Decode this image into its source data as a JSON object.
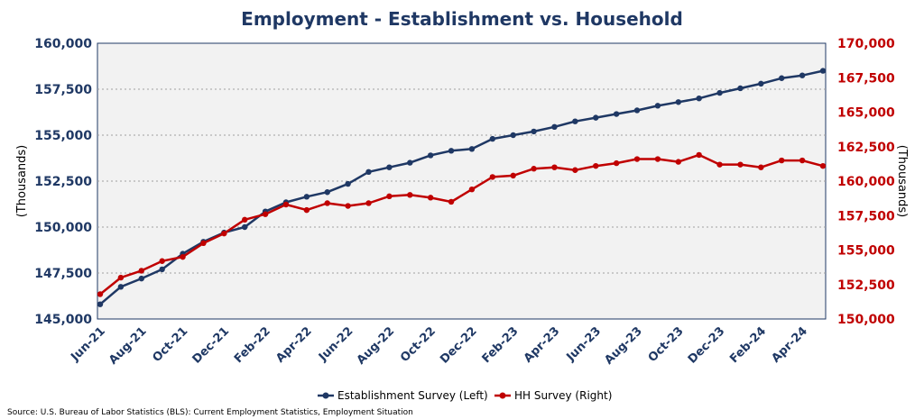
{
  "chart_data": {
    "type": "line",
    "title": "Employment - Establishment vs. Household",
    "ylabel_left": "(Thousands)",
    "ylabel_right": "(Thousands)",
    "ylim_left": [
      145000,
      160000
    ],
    "ylim_right": [
      150000,
      170000
    ],
    "yticks_left": [
      "145,000",
      "147,500",
      "150,000",
      "152,500",
      "155,000",
      "157,500",
      "160,000"
    ],
    "yticks_right": [
      "150,000",
      "152,500",
      "155,000",
      "157,500",
      "160,000",
      "162,500",
      "165,000",
      "167,500",
      "170,000"
    ],
    "x": [
      "Jun-21",
      "Jul-21",
      "Aug-21",
      "Sep-21",
      "Oct-21",
      "Nov-21",
      "Dec-21",
      "Jan-22",
      "Feb-22",
      "Mar-22",
      "Apr-22",
      "May-22",
      "Jun-22",
      "Jul-22",
      "Aug-22",
      "Sep-22",
      "Oct-22",
      "Nov-22",
      "Dec-22",
      "Jan-23",
      "Feb-23",
      "Mar-23",
      "Apr-23",
      "May-23",
      "Jun-23",
      "Jul-23",
      "Aug-23",
      "Sep-23",
      "Oct-23",
      "Nov-23",
      "Dec-23",
      "Jan-24",
      "Feb-24",
      "Mar-24",
      "Apr-24",
      "May-24"
    ],
    "xtick_labels": [
      "Jun-21",
      "Aug-21",
      "Oct-21",
      "Dec-21",
      "Feb-22",
      "Apr-22",
      "Jun-22",
      "Aug-22",
      "Oct-22",
      "Dec-22",
      "Feb-23",
      "Apr-23",
      "Jun-23",
      "Aug-23",
      "Oct-23",
      "Dec-23",
      "Feb-24",
      "Apr-24"
    ],
    "series": [
      {
        "name": "Establishment Survey (Left)",
        "axis": "left",
        "color": "#1f3864",
        "values": [
          145800,
          146750,
          147200,
          147700,
          148550,
          149200,
          149700,
          150000,
          150850,
          151350,
          151650,
          151900,
          152350,
          153000,
          153250,
          153500,
          153900,
          154150,
          154250,
          154800,
          155000,
          155200,
          155450,
          155750,
          155950,
          156150,
          156350,
          156600,
          156800,
          157000,
          157300,
          157550,
          157800,
          158100,
          158250,
          158500
        ]
      },
      {
        "name": "HH Survey (Right)",
        "axis": "right",
        "color": "#c00000",
        "values": [
          151800,
          153000,
          153500,
          154200,
          154500,
          155500,
          156200,
          157200,
          157600,
          158300,
          157900,
          158400,
          158200,
          158400,
          158900,
          159000,
          158800,
          158500,
          159400,
          160300,
          160400,
          160900,
          161000,
          160800,
          161100,
          161300,
          161600,
          161600,
          161400,
          161900,
          161200,
          161200,
          161000,
          161500,
          161500,
          161100
        ]
      }
    ],
    "grid": true,
    "legend_position": "bottom-center"
  },
  "source": "Source: U.S. Bureau of Labor Statistics (BLS): Current Employment Statistics, Employment Situation"
}
